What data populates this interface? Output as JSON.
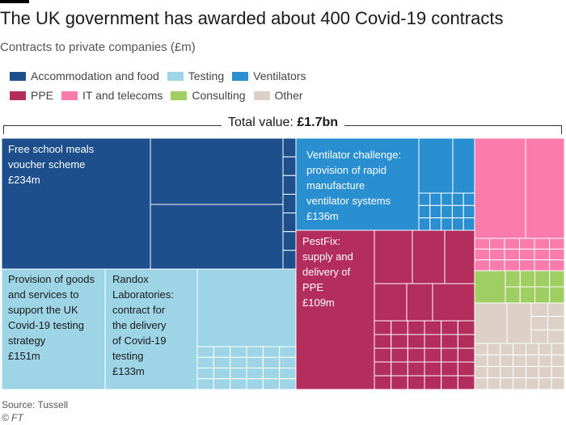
{
  "title": "The UK government has awarded about 400 Covid-19 contracts",
  "subtitle": "Contracts to private companies (£m)",
  "legend": [
    [
      {
        "label": "Accommodation and food",
        "color": "#1c4f8c"
      },
      {
        "label": "Testing",
        "color": "#9dd4e6"
      },
      {
        "label": "Ventilators",
        "color": "#2a8fd1"
      }
    ],
    [
      {
        "label": "PPE",
        "color": "#b42e5d"
      },
      {
        "label": "IT and telecoms",
        "color": "#fb7cab"
      },
      {
        "label": "Consulting",
        "color": "#9fce63"
      },
      {
        "label": "Other",
        "color": "#ddd0c6"
      }
    ]
  ],
  "total": {
    "prefix": "Total value: ",
    "value": "£1.7bn"
  },
  "source": "Source: Tussell",
  "copyright": "© FT",
  "chart_data": {
    "type": "treemap",
    "unit": "£m",
    "total": "£1.7bn",
    "categories": [
      "Accommodation and food",
      "Testing",
      "Ventilators",
      "PPE",
      "IT and telecoms",
      "Consulting",
      "Other"
    ],
    "labelled_contracts": [
      {
        "category": "Accommodation and food",
        "lines": [
          "Free school meals",
          "voucher scheme",
          "£234m"
        ],
        "value": 234
      },
      {
        "category": "Testing",
        "lines": [
          "Provision of goods",
          "and services to",
          "support the UK",
          "Covid-19 testing",
          "strategy",
          "£151m"
        ],
        "value": 151
      },
      {
        "category": "Testing",
        "lines": [
          "Randox",
          "Laboratories:",
          "contract for",
          "the delivery",
          "of Covid-19",
          "testing",
          "£133m"
        ],
        "value": 133
      },
      {
        "category": "Ventilators",
        "lines": [
          "Ventilator challenge:",
          "provision of rapid",
          "manufacture",
          "ventilator systems",
          "£136m"
        ],
        "value": 136
      },
      {
        "category": "PPE",
        "lines": [
          "PestFix:",
          "supply and",
          "delivery of",
          "PPE",
          "£109m"
        ],
        "value": 109
      }
    ]
  }
}
